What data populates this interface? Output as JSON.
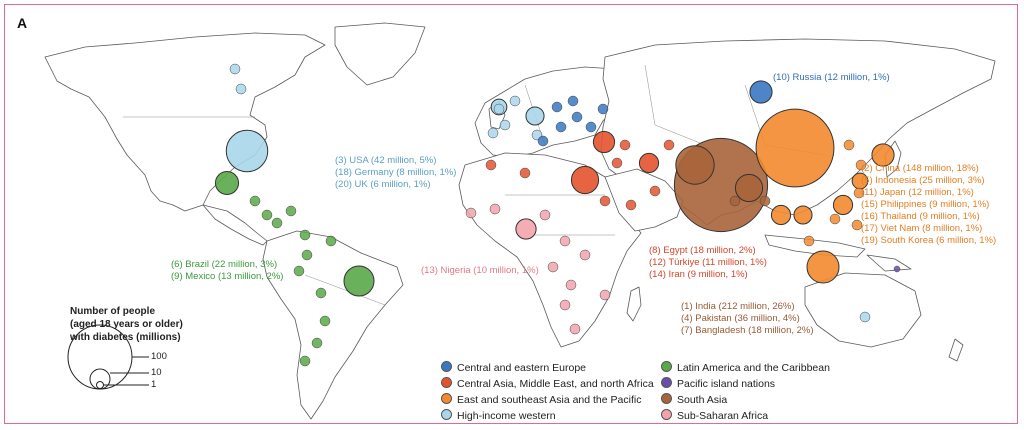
{
  "panel_letter": "A",
  "size_legend": {
    "title_lines": [
      "Number of people",
      "(aged 18 years or older)",
      "with diabetes (millions)"
    ],
    "values": [
      "100",
      "10",
      "1"
    ]
  },
  "categories": [
    {
      "key": "ceu",
      "label": "Central and eastern Europe",
      "color": "#3a78c2"
    },
    {
      "key": "cam",
      "label": "Central Asia, Middle East, and north Africa",
      "color": "#e4532f"
    },
    {
      "key": "esa",
      "label": "East and southeast Asia and the Pacific",
      "color": "#f28a2e"
    },
    {
      "key": "hiw",
      "label": "High-income western",
      "color": "#a9d6ea"
    },
    {
      "key": "lac",
      "label": "Latin America and the Caribbean",
      "color": "#5aa84a"
    },
    {
      "key": "pac",
      "label": "Pacific island nations",
      "color": "#6a4fa8"
    },
    {
      "key": "sa",
      "label": "South Asia",
      "color": "#a8643a"
    },
    {
      "key": "ssa",
      "label": "Sub-Saharan Africa",
      "color": "#f3a3ad"
    }
  ],
  "annotations": {
    "russia": [
      "(10) Russia (12 million, 1%)"
    ],
    "hiw": [
      "(3) USA (42 million, 5%)",
      "(18) Germany (8 million, 1%)",
      "(20) UK (6 million, 1%)"
    ],
    "lac": [
      "(6) Brazil (22 million, 3%)",
      "(9) Mexico (13 million, 2%)"
    ],
    "ssa": [
      "(13) Nigeria (10 million, 1%)"
    ],
    "cam": [
      "(8) Egypt (18 million, 2%)",
      "(12) Türkiye (11 million, 1%)",
      "(14) Iran (9 million, 1%)"
    ],
    "sa": [
      "(1) India (212 million, 26%)",
      "(4) Pakistan (36 million, 4%)",
      "(7) Bangladesh (18 million, 2%)"
    ],
    "esa": [
      "(2) China (148 million, 18%)",
      "(5) Indonesia (25 million, 3%)",
      "(11) Japan (12 million, 1%)",
      "(15) Philippines (9 million, 1%)",
      "(16) Thailand (9 million, 1%)",
      "(17) Viet Nam (8 million, 1%)",
      "(19) South Korea (6 million, 1%)"
    ]
  },
  "bubbles": [
    {
      "name": "India",
      "cat": "sa",
      "millions": 212
    },
    {
      "name": "China",
      "cat": "esa",
      "millions": 148
    },
    {
      "name": "USA",
      "cat": "hiw",
      "millions": 42
    },
    {
      "name": "Pakistan",
      "cat": "sa",
      "millions": 36
    },
    {
      "name": "Indonesia",
      "cat": "esa",
      "millions": 25
    },
    {
      "name": "Brazil",
      "cat": "lac",
      "millions": 22
    },
    {
      "name": "Bangladesh",
      "cat": "sa",
      "millions": 18
    },
    {
      "name": "Egypt",
      "cat": "cam",
      "millions": 18
    },
    {
      "name": "Mexico",
      "cat": "lac",
      "millions": 13
    },
    {
      "name": "Russia",
      "cat": "ceu",
      "millions": 12
    },
    {
      "name": "Japan",
      "cat": "esa",
      "millions": 12
    },
    {
      "name": "Türkiye",
      "cat": "cam",
      "millions": 11
    },
    {
      "name": "Nigeria",
      "cat": "ssa",
      "millions": 10
    },
    {
      "name": "Iran",
      "cat": "cam",
      "millions": 9
    },
    {
      "name": "Philippines",
      "cat": "esa",
      "millions": 9
    },
    {
      "name": "Thailand",
      "cat": "esa",
      "millions": 9
    },
    {
      "name": "Viet Nam",
      "cat": "esa",
      "millions": 8
    },
    {
      "name": "Germany",
      "cat": "hiw",
      "millions": 8
    },
    {
      "name": "South Korea",
      "cat": "esa",
      "millions": 6
    },
    {
      "name": "UK",
      "cat": "hiw",
      "millions": 6
    }
  ]
}
